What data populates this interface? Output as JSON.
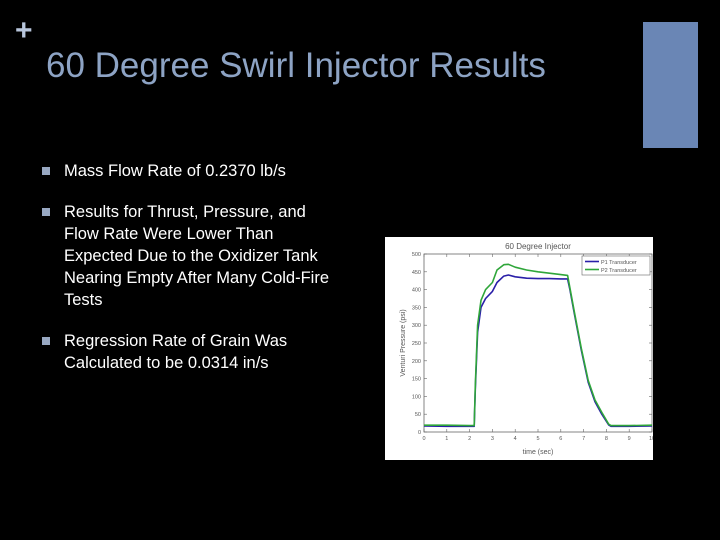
{
  "slide": {
    "marker": "+",
    "title": "60 Degree Swirl Injector Results",
    "accent_color": "#6a86b5",
    "bullets": [
      {
        "text": "Mass Flow Rate of 0.2370 lb/s"
      },
      {
        "text": "Results for Thrust, Pressure, and Flow Rate Were Lower Than Expected Due to the Oxidizer Tank Nearing Empty After Many Cold-Fire Tests"
      },
      {
        "text": "Regression Rate of Grain Was Calculated to be 0.0314 in/s"
      }
    ]
  },
  "chart_data": {
    "type": "line",
    "title": "60 Degree Injector",
    "xlabel": "time (sec)",
    "ylabel": "Venturi Pressure (psi)",
    "xlim": [
      0,
      10
    ],
    "ylim": [
      0,
      500
    ],
    "xticks": [
      0,
      1,
      2,
      3,
      4,
      5,
      6,
      7,
      8,
      9,
      10
    ],
    "yticks": [
      0,
      50,
      100,
      150,
      200,
      250,
      300,
      350,
      400,
      450,
      500
    ],
    "grid": false,
    "legend_position": "upper right",
    "series": [
      {
        "name": "P1 Transducer",
        "color": "#2a1fa8",
        "x": [
          0,
          1,
          2,
          2.2,
          2.25,
          2.35,
          2.5,
          2.7,
          3.0,
          3.2,
          3.5,
          3.7,
          4.0,
          4.5,
          5.0,
          5.5,
          6.0,
          6.3,
          6.4,
          6.6,
          6.9,
          7.2,
          7.5,
          7.8,
          8.1,
          8.2,
          9,
          10
        ],
        "y": [
          17,
          16,
          16,
          16,
          120,
          280,
          350,
          375,
          395,
          420,
          438,
          441,
          436,
          432,
          431,
          431,
          430,
          430,
          400,
          330,
          230,
          140,
          85,
          50,
          20,
          16,
          16,
          17
        ]
      },
      {
        "name": "P2 Transducer",
        "color": "#2fa63a",
        "x": [
          0,
          1,
          2,
          2.2,
          2.25,
          2.35,
          2.5,
          2.7,
          3.0,
          3.2,
          3.5,
          3.7,
          4.0,
          4.5,
          5.0,
          5.5,
          6.0,
          6.3,
          6.4,
          6.6,
          6.9,
          7.2,
          7.5,
          7.8,
          8.1,
          8.2,
          9,
          10
        ],
        "y": [
          19,
          19,
          18,
          18,
          130,
          300,
          370,
          400,
          420,
          455,
          470,
          471,
          463,
          455,
          450,
          446,
          442,
          440,
          405,
          335,
          235,
          145,
          90,
          55,
          22,
          18,
          18,
          19
        ]
      }
    ]
  }
}
